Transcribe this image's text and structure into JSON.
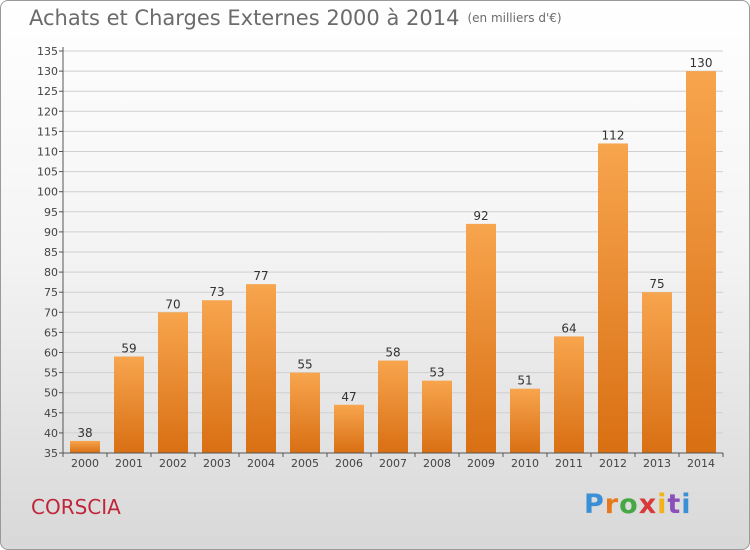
{
  "chart_data": {
    "type": "bar",
    "title": "Achats et Charges Externes 2000 à 2014",
    "subtitle": "(en milliers d'€)",
    "categories": [
      "2000",
      "2001",
      "2002",
      "2003",
      "2004",
      "2005",
      "2006",
      "2007",
      "2008",
      "2009",
      "2010",
      "2011",
      "2012",
      "2013",
      "2014"
    ],
    "values": [
      38,
      59,
      70,
      73,
      77,
      55,
      47,
      58,
      53,
      92,
      51,
      64,
      112,
      75,
      130
    ],
    "ylim": [
      35,
      135
    ],
    "ytick_step": 5,
    "grid": true,
    "colors": {
      "bar_top": "#f7a54e",
      "bar_bottom": "#d96f13",
      "label": "#333333",
      "grid": "#d0d0d0"
    }
  },
  "footer": {
    "commune": "CORSCIA",
    "logo_letters": [
      "P",
      "r",
      "o",
      "x",
      "i",
      "t",
      "i"
    ],
    "logo_colors": [
      "#3b8fd6",
      "#e8781c",
      "#45a845",
      "#d83a3a",
      "#f1b21a",
      "#8a4fb8",
      "#3b8fd6"
    ]
  }
}
